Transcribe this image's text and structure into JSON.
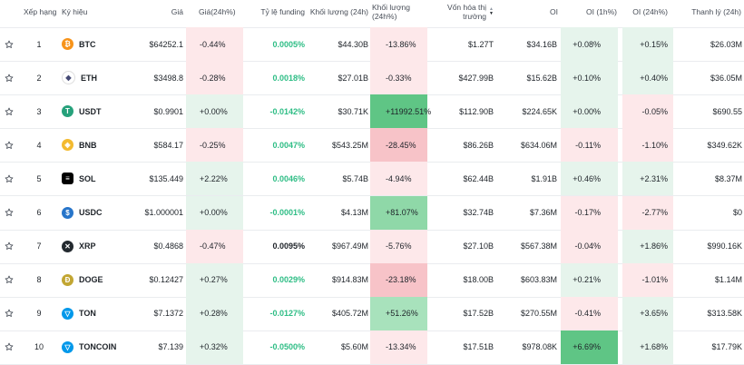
{
  "headers": {
    "rank": "Xếp hạng",
    "symbol": "Ký hiệu",
    "price": "Giá",
    "change24h": "Giá(24h%)",
    "funding": "Tỷ lệ funding",
    "volume": "Khối lượng (24h)",
    "volume_change": "Khối lượng (24h%)",
    "market_cap_line1": "Vốn hóa thị",
    "market_cap_line2": "trường",
    "oi": "OI",
    "oi_1h": "OI (1h%)",
    "oi_24h": "OI (24h%)",
    "liquidation": "Thanh lý (24h)"
  },
  "colors": {
    "green_bg": "#e6f4ec",
    "red_bg": "#fde8ea",
    "strong_green_bg": "#52c07e",
    "strong_red_bg": "#f7c3c8"
  },
  "rows": [
    {
      "rank": "1",
      "symbol": "BTC",
      "icon": "btc-icon",
      "price": "$64252.1",
      "change": "-0.44%",
      "change_dir": "neg",
      "funding": "0.0005%",
      "funding_dir": "pos",
      "volume": "$44.30B",
      "vol_change": "-13.86%",
      "vol_dir": "neg",
      "mcap": "$1.27T",
      "oi": "$34.16B",
      "oi1h": "+0.08%",
      "oi1h_dir": "pos",
      "oi24h": "+0.15%",
      "oi24h_dir": "pos",
      "liq": "$26.03M"
    },
    {
      "rank": "2",
      "symbol": "ETH",
      "icon": "eth-icon",
      "price": "$3498.8",
      "change": "-0.28%",
      "change_dir": "neg",
      "funding": "0.0018%",
      "funding_dir": "pos",
      "volume": "$27.01B",
      "vol_change": "-0.33%",
      "vol_dir": "neg",
      "mcap": "$427.99B",
      "oi": "$15.62B",
      "oi1h": "+0.10%",
      "oi1h_dir": "pos",
      "oi24h": "+0.40%",
      "oi24h_dir": "pos",
      "liq": "$36.05M"
    },
    {
      "rank": "3",
      "symbol": "USDT",
      "icon": "usdt-icon",
      "price": "$0.9901",
      "change": "+0.00%",
      "change_dir": "pos",
      "funding": "-0.0142%",
      "funding_dir": "pos",
      "volume": "$30.71K",
      "vol_change": "+11992.51%",
      "vol_dir": "strongpos",
      "mcap": "$112.90B",
      "oi": "$224.65K",
      "oi1h": "+0.00%",
      "oi1h_dir": "pos",
      "oi24h": "-0.05%",
      "oi24h_dir": "neg",
      "liq": "$690.55"
    },
    {
      "rank": "4",
      "symbol": "BNB",
      "icon": "bnb-icon",
      "price": "$584.17",
      "change": "-0.25%",
      "change_dir": "neg",
      "funding": "0.0047%",
      "funding_dir": "pos",
      "volume": "$543.25M",
      "vol_change": "-28.45%",
      "vol_dir": "strongneg",
      "mcap": "$86.26B",
      "oi": "$634.06M",
      "oi1h": "-0.11%",
      "oi1h_dir": "neg",
      "oi24h": "-1.10%",
      "oi24h_dir": "neg",
      "liq": "$349.62K"
    },
    {
      "rank": "5",
      "symbol": "SOL",
      "icon": "sol-icon",
      "price": "$135.449",
      "change": "+2.22%",
      "change_dir": "pos",
      "funding": "0.0046%",
      "funding_dir": "pos",
      "volume": "$5.74B",
      "vol_change": "-4.94%",
      "vol_dir": "neg",
      "mcap": "$62.44B",
      "oi": "$1.91B",
      "oi1h": "+0.46%",
      "oi1h_dir": "pos",
      "oi24h": "+2.31%",
      "oi24h_dir": "pos",
      "liq": "$8.37M"
    },
    {
      "rank": "6",
      "symbol": "USDC",
      "icon": "usdc-icon",
      "price": "$1.000001",
      "change": "+0.00%",
      "change_dir": "pos",
      "funding": "-0.0001%",
      "funding_dir": "pos",
      "volume": "$4.13M",
      "vol_change": "+81.07%",
      "vol_dir": "strongpos2",
      "mcap": "$32.74B",
      "oi": "$7.36M",
      "oi1h": "-0.17%",
      "oi1h_dir": "neg",
      "oi24h": "-2.77%",
      "oi24h_dir": "neg",
      "liq": "$0"
    },
    {
      "rank": "7",
      "symbol": "XRP",
      "icon": "xrp-icon",
      "price": "$0.4868",
      "change": "-0.47%",
      "change_dir": "neg",
      "funding": "0.0095%",
      "funding_dir": "neu",
      "volume": "$967.49M",
      "vol_change": "-5.76%",
      "vol_dir": "neg",
      "mcap": "$27.10B",
      "oi": "$567.38M",
      "oi1h": "-0.04%",
      "oi1h_dir": "neg",
      "oi24h": "+1.86%",
      "oi24h_dir": "pos",
      "liq": "$990.16K"
    },
    {
      "rank": "8",
      "symbol": "DOGE",
      "icon": "doge-icon",
      "price": "$0.12427",
      "change": "+0.27%",
      "change_dir": "pos",
      "funding": "0.0029%",
      "funding_dir": "pos",
      "volume": "$914.83M",
      "vol_change": "-23.18%",
      "vol_dir": "strongneg",
      "mcap": "$18.00B",
      "oi": "$603.83M",
      "oi1h": "+0.21%",
      "oi1h_dir": "pos",
      "oi24h": "-1.01%",
      "oi24h_dir": "neg",
      "liq": "$1.14M"
    },
    {
      "rank": "9",
      "symbol": "TON",
      "icon": "ton-icon",
      "price": "$7.1372",
      "change": "+0.28%",
      "change_dir": "pos",
      "funding": "-0.0127%",
      "funding_dir": "pos",
      "volume": "$405.72M",
      "vol_change": "+51.26%",
      "vol_dir": "strongpos3",
      "mcap": "$17.52B",
      "oi": "$270.55M",
      "oi1h": "-0.41%",
      "oi1h_dir": "neg",
      "oi24h": "+3.65%",
      "oi24h_dir": "pos",
      "liq": "$313.58K"
    },
    {
      "rank": "10",
      "symbol": "TONCOIN",
      "icon": "toncoin-icon",
      "price": "$7.139",
      "change": "+0.32%",
      "change_dir": "pos",
      "funding": "-0.0500%",
      "funding_dir": "pos",
      "volume": "$5.60M",
      "vol_change": "-13.34%",
      "vol_dir": "neg",
      "mcap": "$17.51B",
      "oi": "$978.08K",
      "oi1h": "+6.69%",
      "oi1h_dir": "strongpos",
      "oi24h": "+1.68%",
      "oi24h_dir": "pos",
      "liq": "$17.79K"
    }
  ]
}
